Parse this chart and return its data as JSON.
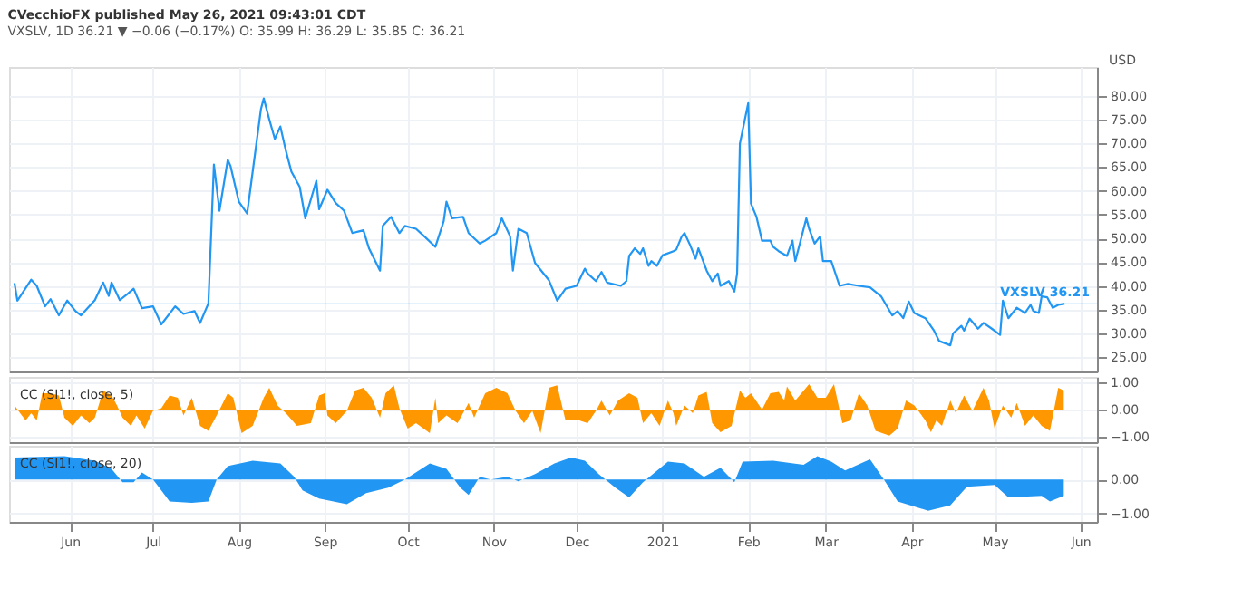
{
  "chart_data": [
    {
      "type": "line",
      "title": "CVecchioFX published May 26, 2021 09:43:01 CDT",
      "subtitle": "VXSLV, 1D  36.21 ▼ −0.06 (−0.17%)  O: 35.99  H: 36.29  L: 35.85  C: 36.21",
      "ylabel": "USD",
      "x": [
        "2020-05-12",
        "2020-05-13",
        "2020-05-18",
        "2020-05-20",
        "2020-05-23",
        "2020-05-25",
        "2020-05-28",
        "2020-05-31",
        "2020-06-03",
        "2020-06-05",
        "2020-06-10",
        "2020-06-13",
        "2020-06-15",
        "2020-06-16",
        "2020-06-19",
        "2020-06-22",
        "2020-06-24",
        "2020-06-27",
        "2020-07-01",
        "2020-07-04",
        "2020-07-09",
        "2020-07-12",
        "2020-07-16",
        "2020-07-18",
        "2020-07-21",
        "2020-07-23",
        "2020-07-25",
        "2020-07-28",
        "2020-07-29",
        "2020-08-01",
        "2020-08-04",
        "2020-08-06",
        "2020-08-09",
        "2020-08-10",
        "2020-08-12",
        "2020-08-14",
        "2020-08-16",
        "2020-08-18",
        "2020-08-20",
        "2020-08-23",
        "2020-08-25",
        "2020-08-29",
        "2020-08-30",
        "2020-09-02",
        "2020-09-05",
        "2020-09-08",
        "2020-09-11",
        "2020-09-15",
        "2020-09-17",
        "2020-09-21",
        "2020-09-22",
        "2020-09-25",
        "2020-09-28",
        "2020-09-30",
        "2020-10-04",
        "2020-10-07",
        "2020-10-11",
        "2020-10-14",
        "2020-10-15",
        "2020-10-17",
        "2020-10-21",
        "2020-10-23",
        "2020-10-27",
        "2020-10-29",
        "2020-11-02",
        "2020-11-04",
        "2020-11-07",
        "2020-11-08",
        "2020-11-10",
        "2020-11-13",
        "2020-11-16",
        "2020-11-21",
        "2020-11-24",
        "2020-11-27",
        "2020-12-01",
        "2020-12-04",
        "2020-12-05",
        "2020-12-08",
        "2020-12-10",
        "2020-12-12",
        "2020-12-17",
        "2020-12-19",
        "2020-12-20",
        "2020-12-22",
        "2020-12-24",
        "2020-12-25",
        "2020-12-27",
        "2020-12-28",
        "2020-12-30",
        "2021-01-01",
        "2021-01-05",
        "2021-01-06",
        "2021-01-08",
        "2021-01-09",
        "2021-01-11",
        "2021-01-13",
        "2021-01-14",
        "2021-01-17",
        "2021-01-19",
        "2021-01-21",
        "2021-01-22",
        "2021-01-25",
        "2021-01-27",
        "2021-01-28",
        "2021-01-29",
        "2021-02-01",
        "2021-02-02",
        "2021-02-04",
        "2021-02-06",
        "2021-02-09",
        "2021-02-10",
        "2021-02-12",
        "2021-02-15",
        "2021-02-17",
        "2021-02-18",
        "2021-02-22",
        "2021-02-23",
        "2021-02-25",
        "2021-02-27",
        "2021-02-28",
        "2021-03-03",
        "2021-03-06",
        "2021-03-09",
        "2021-03-13",
        "2021-03-17",
        "2021-03-21",
        "2021-03-25",
        "2021-03-27",
        "2021-03-29",
        "2021-03-31",
        "2021-04-02",
        "2021-04-06",
        "2021-04-09",
        "2021-04-11",
        "2021-04-15",
        "2021-04-16",
        "2021-04-19",
        "2021-04-20",
        "2021-04-22",
        "2021-04-25",
        "2021-04-27",
        "2021-04-30",
        "2021-05-03",
        "2021-05-04",
        "2021-05-06",
        "2021-05-09",
        "2021-05-12",
        "2021-05-14",
        "2021-05-15",
        "2021-05-17",
        "2021-05-18",
        "2021-05-20",
        "2021-05-22",
        "2021-05-24",
        "2021-05-26"
      ],
      "series": [
        {
          "color": "#2196f3",
          "values": [
            40.4,
            36.9,
            41.3,
            40.0,
            35.7,
            37.2,
            33.8,
            36.9,
            34.7,
            33.8,
            37.0,
            40.7,
            37.9,
            40.7,
            37.0,
            38.4,
            39.4,
            35.3,
            35.7,
            31.9,
            35.7,
            34.1,
            34.7,
            32.2,
            36.3,
            65.5,
            55.8,
            66.5,
            65.2,
            57.7,
            55.2,
            64.0,
            77.2,
            79.4,
            75.0,
            70.9,
            73.5,
            68.4,
            64.0,
            60.8,
            54.2,
            62.1,
            56.1,
            60.2,
            57.4,
            55.8,
            51.1,
            51.7,
            47.9,
            43.2,
            52.6,
            54.5,
            51.1,
            52.6,
            52.0,
            50.4,
            48.2,
            53.6,
            57.7,
            54.2,
            54.5,
            51.1,
            48.9,
            49.5,
            51.1,
            54.2,
            50.4,
            43.2,
            52.0,
            51.1,
            44.8,
            41.2,
            36.9,
            39.4,
            40.0,
            43.6,
            42.6,
            41.0,
            42.9,
            40.7,
            40.0,
            41.0,
            46.3,
            47.9,
            46.7,
            47.9,
            44.2,
            45.2,
            44.2,
            46.4,
            47.3,
            47.6,
            50.4,
            51.1,
            48.6,
            45.7,
            47.9,
            43.2,
            41.0,
            42.6,
            40.0,
            41.0,
            38.8,
            42.6,
            69.9,
            78.4,
            57.3,
            54.5,
            49.5,
            49.5,
            48.2,
            47.3,
            46.3,
            49.5,
            45.2,
            54.2,
            52.0,
            48.9,
            50.4,
            45.2,
            45.2,
            40.0,
            40.4,
            40.0,
            39.7,
            37.8,
            33.8,
            34.7,
            33.2,
            36.7,
            34.3,
            33.2,
            30.7,
            28.4,
            27.5,
            30.0,
            31.6,
            30.6,
            33.1,
            31.0,
            32.2,
            31.0,
            29.7,
            36.9,
            33.2,
            35.4,
            34.3,
            36.0,
            34.7,
            34.3,
            37.8,
            37.6,
            35.4,
            36.0,
            36.21
          ]
        }
      ],
      "xlim": [
        "2020-05-10",
        "2021-06-07"
      ],
      "xticks": [
        "2020-06-01",
        "2020-07-01",
        "2020-08-01",
        "2020-09-01",
        "2020-10-01",
        "2020-11-01",
        "2020-12-01",
        "2021-01-01",
        "2021-02-01",
        "2021-03-01",
        "2021-04-01",
        "2021-05-01",
        "2021-06-01"
      ],
      "ylim": [
        22,
        86
      ],
      "yticks": [
        {
          "value": 25,
          "label": "25.00"
        },
        {
          "value": 30,
          "label": "30.00"
        },
        {
          "value": 35,
          "label": "35.00"
        },
        {
          "value": 40,
          "label": "40.00"
        },
        {
          "value": 45,
          "label": "45.00"
        },
        {
          "value": 50,
          "label": "50.00"
        },
        {
          "value": 55,
          "label": "55.00"
        },
        {
          "value": 60,
          "label": "60.00"
        },
        {
          "value": 65,
          "label": "65.00"
        },
        {
          "value": 70,
          "label": "70.00"
        },
        {
          "value": 75,
          "label": "75.00"
        },
        {
          "value": 80,
          "label": "80.00"
        }
      ],
      "ref_lines": [
        {
          "axis": "y",
          "value": 36.21,
          "label": "VXSLV 36.21",
          "color": "#2196f3"
        }
      ],
      "legend": false,
      "grid": true,
      "tick_labels": "y"
    },
    {
      "type": "area",
      "annotations": [
        "CC (SI1!, close, 5)"
      ],
      "x": [
        "2020-05-12",
        "2020-05-14",
        "2020-05-16",
        "2020-05-18",
        "2020-05-20",
        "2020-05-22",
        "2020-05-25",
        "2020-05-28",
        "2020-05-30",
        "2020-06-02",
        "2020-06-05",
        "2020-06-08",
        "2020-06-10",
        "2020-06-13",
        "2020-06-16",
        "2020-06-18",
        "2020-06-20",
        "2020-06-23",
        "2020-06-25",
        "2020-06-28",
        "2020-07-01",
        "2020-07-04",
        "2020-07-07",
        "2020-07-10",
        "2020-07-12",
        "2020-07-15",
        "2020-07-18",
        "2020-07-21",
        "2020-07-24",
        "2020-07-28",
        "2020-07-30",
        "2020-08-02",
        "2020-08-06",
        "2020-08-10",
        "2020-08-12",
        "2020-08-15",
        "2020-08-18",
        "2020-08-22",
        "2020-08-27",
        "2020-08-30",
        "2020-09-01",
        "2020-09-02",
        "2020-09-05",
        "2020-09-09",
        "2020-09-12",
        "2020-09-15",
        "2020-09-18",
        "2020-09-21",
        "2020-09-23",
        "2020-09-26",
        "2020-09-28",
        "2020-10-01",
        "2020-10-04",
        "2020-10-09",
        "2020-10-11",
        "2020-10-12",
        "2020-10-15",
        "2020-10-19",
        "2020-10-23",
        "2020-10-25",
        "2020-10-29",
        "2020-11-02",
        "2020-11-06",
        "2020-11-09",
        "2020-11-12",
        "2020-11-15",
        "2020-11-18",
        "2020-11-21",
        "2020-11-24",
        "2020-11-27",
        "2020-12-02",
        "2020-12-05",
        "2020-12-08",
        "2020-12-10",
        "2020-12-13",
        "2020-12-16",
        "2020-12-20",
        "2020-12-23",
        "2020-12-25",
        "2020-12-28",
        "2020-12-31",
        "2021-01-03",
        "2021-01-05",
        "2021-01-06",
        "2021-01-09",
        "2021-01-12",
        "2021-01-14",
        "2021-01-17",
        "2021-01-19",
        "2021-01-22",
        "2021-01-26",
        "2021-01-29",
        "2021-01-31",
        "2021-02-02",
        "2021-02-06",
        "2021-02-09",
        "2021-02-12",
        "2021-02-14",
        "2021-02-15",
        "2021-02-18",
        "2021-02-23",
        "2021-02-26",
        "2021-03-01",
        "2021-03-04",
        "2021-03-07",
        "2021-03-10",
        "2021-03-13",
        "2021-03-16",
        "2021-03-19",
        "2021-03-24",
        "2021-03-27",
        "2021-03-30",
        "2021-04-02",
        "2021-04-06",
        "2021-04-08",
        "2021-04-10",
        "2021-04-12",
        "2021-04-15",
        "2021-04-17",
        "2021-04-20",
        "2021-04-23",
        "2021-04-27",
        "2021-04-29",
        "2021-05-01",
        "2021-05-04",
        "2021-05-07",
        "2021-05-09",
        "2021-05-12",
        "2021-05-15",
        "2021-05-18",
        "2021-05-21",
        "2021-05-24",
        "2021-05-26"
      ],
      "series": [
        {
          "color": "#ff9800",
          "values": [
            0.15,
            -0.13,
            -0.4,
            -0.13,
            -0.4,
            0.6,
            0.6,
            0.52,
            -0.3,
            -0.6,
            -0.22,
            -0.5,
            -0.3,
            0.7,
            0.52,
            0.15,
            -0.3,
            -0.6,
            -0.22,
            -0.7,
            -0.05,
            0.05,
            0.52,
            0.43,
            -0.22,
            0.43,
            -0.6,
            -0.78,
            -0.22,
            0.6,
            0.43,
            -0.87,
            -0.6,
            0.43,
            0.8,
            0.15,
            -0.13,
            -0.6,
            -0.5,
            0.52,
            0.6,
            -0.22,
            -0.5,
            -0.05,
            0.7,
            0.8,
            0.43,
            -0.3,
            0.6,
            0.89,
            0.05,
            -0.7,
            -0.5,
            -0.87,
            0.43,
            -0.5,
            -0.22,
            -0.5,
            0.24,
            -0.3,
            0.6,
            0.8,
            0.6,
            -0.05,
            -0.5,
            -0.05,
            -0.87,
            0.8,
            0.89,
            -0.4,
            -0.4,
            -0.5,
            -0.05,
            0.33,
            -0.22,
            0.33,
            0.6,
            0.43,
            -0.5,
            -0.13,
            -0.6,
            0.33,
            -0.13,
            -0.6,
            0.15,
            -0.13,
            0.52,
            0.65,
            -0.5,
            -0.83,
            -0.6,
            0.7,
            0.43,
            0.6,
            0.0,
            0.6,
            0.65,
            0.33,
            0.85,
            0.33,
            0.93,
            0.43,
            0.43,
            0.93,
            -0.5,
            -0.4,
            0.6,
            0.15,
            -0.78,
            -0.96,
            -0.7,
            0.33,
            0.15,
            -0.4,
            -0.83,
            -0.4,
            -0.6,
            0.33,
            -0.13,
            0.52,
            -0.05,
            0.8,
            0.33,
            -0.7,
            0.15,
            -0.3,
            0.24,
            -0.6,
            -0.22,
            -0.6,
            -0.78,
            0.8,
            0.7
          ]
        }
      ],
      "xlim": [
        "2020-05-10",
        "2021-06-07"
      ],
      "xticks": [
        "2020-06-01",
        "2020-07-01",
        "2020-08-01",
        "2020-09-01",
        "2020-10-01",
        "2020-11-01",
        "2020-12-01",
        "2021-01-01",
        "2021-02-01",
        "2021-03-01",
        "2021-04-01",
        "2021-05-01",
        "2021-06-01"
      ],
      "ylim": [
        -1.2,
        1.2
      ],
      "yticks": [
        {
          "value": -1,
          "label": "−1.00"
        },
        {
          "value": 0,
          "label": "0.00"
        },
        {
          "value": 1,
          "label": "1.00"
        }
      ],
      "grid": true,
      "tick_labels": "y"
    },
    {
      "type": "area",
      "annotations": [
        "CC (SI1!, close, 20)"
      ],
      "x": [
        "2020-05-12",
        "2020-05-30",
        "2020-06-10",
        "2020-06-16",
        "2020-06-20",
        "2020-06-24",
        "2020-06-27",
        "2020-07-01",
        "2020-07-04",
        "2020-07-07",
        "2020-07-15",
        "2020-07-21",
        "2020-07-24",
        "2020-07-28",
        "2020-08-06",
        "2020-08-16",
        "2020-08-21",
        "2020-08-24",
        "2020-08-30",
        "2020-09-09",
        "2020-09-16",
        "2020-09-24",
        "2020-09-30",
        "2020-10-09",
        "2020-10-15",
        "2020-10-20",
        "2020-10-23",
        "2020-10-27",
        "2020-10-31",
        "2020-11-06",
        "2020-11-10",
        "2020-11-16",
        "2020-11-23",
        "2020-11-29",
        "2020-12-04",
        "2020-12-09",
        "2020-12-15",
        "2020-12-20",
        "2020-12-25",
        "2021-01-03",
        "2021-01-09",
        "2021-01-16",
        "2021-01-22",
        "2021-01-27",
        "2021-01-30",
        "2021-02-10",
        "2021-02-21",
        "2021-02-26",
        "2021-03-03",
        "2021-03-08",
        "2021-03-17",
        "2021-03-22",
        "2021-03-27",
        "2021-04-07",
        "2021-04-15",
        "2021-04-21",
        "2021-05-01",
        "2021-05-06",
        "2021-05-18",
        "2021-05-21",
        "2021-05-26"
      ],
      "series": [
        {
          "color": "#2196f3",
          "values": [
            0.65,
            0.69,
            0.56,
            0.32,
            -0.08,
            -0.08,
            0.21,
            0.0,
            -0.32,
            -0.65,
            -0.69,
            -0.65,
            0.0,
            0.4,
            0.56,
            0.48,
            0.08,
            -0.32,
            -0.56,
            -0.73,
            -0.4,
            -0.24,
            0.0,
            0.48,
            0.32,
            -0.24,
            -0.45,
            0.08,
            0.0,
            0.08,
            -0.05,
            0.16,
            0.48,
            0.65,
            0.56,
            0.16,
            -0.24,
            -0.53,
            -0.08,
            0.53,
            0.48,
            0.08,
            0.35,
            -0.08,
            0.53,
            0.56,
            0.44,
            0.69,
            0.53,
            0.27,
            0.6,
            0.0,
            -0.65,
            -0.92,
            -0.76,
            -0.21,
            -0.16,
            -0.53,
            -0.48,
            -0.65,
            -0.48
          ]
        }
      ],
      "xlim": [
        "2020-05-10",
        "2021-06-07"
      ],
      "xticks": [
        {
          "value": "2020-06-01",
          "label": "Jun"
        },
        {
          "value": "2020-07-01",
          "label": "Jul"
        },
        {
          "value": "2020-08-01",
          "label": "Aug"
        },
        {
          "value": "2020-09-01",
          "label": "Sep"
        },
        {
          "value": "2020-10-01",
          "label": "Oct"
        },
        {
          "value": "2020-11-01",
          "label": "Nov"
        },
        {
          "value": "2020-12-01",
          "label": "Dec"
        },
        {
          "value": "2021-01-01",
          "label": "2021"
        },
        {
          "value": "2021-02-01",
          "label": "Feb"
        },
        {
          "value": "2021-03-01",
          "label": "Mar"
        },
        {
          "value": "2021-04-01",
          "label": "Apr"
        },
        {
          "value": "2021-05-01",
          "label": "May"
        },
        {
          "value": "2021-06-01",
          "label": "Jun"
        }
      ],
      "ylim": [
        -1.25,
        1.0
      ],
      "yticks": [
        {
          "value": -1,
          "label": "−1.00"
        },
        {
          "value": 0,
          "label": "0.00"
        }
      ],
      "grid": true
    }
  ]
}
